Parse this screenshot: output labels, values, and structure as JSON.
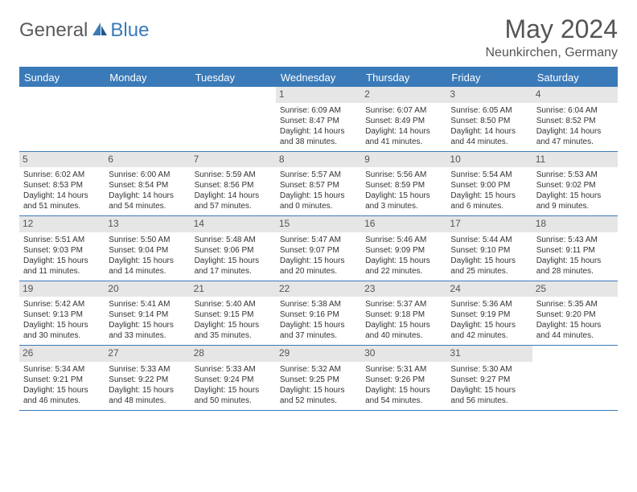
{
  "logo": {
    "part1": "General",
    "part2": "Blue"
  },
  "title": "May 2024",
  "location": "Neunkirchen, Germany",
  "colors": {
    "header_bg": "#3a7ab8",
    "daynum_bg": "#e6e6e6",
    "text": "#333333",
    "title_text": "#555555"
  },
  "dow": [
    "Sunday",
    "Monday",
    "Tuesday",
    "Wednesday",
    "Thursday",
    "Friday",
    "Saturday"
  ],
  "weeks": [
    [
      {
        "n": "",
        "sr": "",
        "ss": "",
        "dl": ""
      },
      {
        "n": "",
        "sr": "",
        "ss": "",
        "dl": ""
      },
      {
        "n": "",
        "sr": "",
        "ss": "",
        "dl": ""
      },
      {
        "n": "1",
        "sr": "Sunrise: 6:09 AM",
        "ss": "Sunset: 8:47 PM",
        "dl": "Daylight: 14 hours and 38 minutes."
      },
      {
        "n": "2",
        "sr": "Sunrise: 6:07 AM",
        "ss": "Sunset: 8:49 PM",
        "dl": "Daylight: 14 hours and 41 minutes."
      },
      {
        "n": "3",
        "sr": "Sunrise: 6:05 AM",
        "ss": "Sunset: 8:50 PM",
        "dl": "Daylight: 14 hours and 44 minutes."
      },
      {
        "n": "4",
        "sr": "Sunrise: 6:04 AM",
        "ss": "Sunset: 8:52 PM",
        "dl": "Daylight: 14 hours and 47 minutes."
      }
    ],
    [
      {
        "n": "5",
        "sr": "Sunrise: 6:02 AM",
        "ss": "Sunset: 8:53 PM",
        "dl": "Daylight: 14 hours and 51 minutes."
      },
      {
        "n": "6",
        "sr": "Sunrise: 6:00 AM",
        "ss": "Sunset: 8:54 PM",
        "dl": "Daylight: 14 hours and 54 minutes."
      },
      {
        "n": "7",
        "sr": "Sunrise: 5:59 AM",
        "ss": "Sunset: 8:56 PM",
        "dl": "Daylight: 14 hours and 57 minutes."
      },
      {
        "n": "8",
        "sr": "Sunrise: 5:57 AM",
        "ss": "Sunset: 8:57 PM",
        "dl": "Daylight: 15 hours and 0 minutes."
      },
      {
        "n": "9",
        "sr": "Sunrise: 5:56 AM",
        "ss": "Sunset: 8:59 PM",
        "dl": "Daylight: 15 hours and 3 minutes."
      },
      {
        "n": "10",
        "sr": "Sunrise: 5:54 AM",
        "ss": "Sunset: 9:00 PM",
        "dl": "Daylight: 15 hours and 6 minutes."
      },
      {
        "n": "11",
        "sr": "Sunrise: 5:53 AM",
        "ss": "Sunset: 9:02 PM",
        "dl": "Daylight: 15 hours and 9 minutes."
      }
    ],
    [
      {
        "n": "12",
        "sr": "Sunrise: 5:51 AM",
        "ss": "Sunset: 9:03 PM",
        "dl": "Daylight: 15 hours and 11 minutes."
      },
      {
        "n": "13",
        "sr": "Sunrise: 5:50 AM",
        "ss": "Sunset: 9:04 PM",
        "dl": "Daylight: 15 hours and 14 minutes."
      },
      {
        "n": "14",
        "sr": "Sunrise: 5:48 AM",
        "ss": "Sunset: 9:06 PM",
        "dl": "Daylight: 15 hours and 17 minutes."
      },
      {
        "n": "15",
        "sr": "Sunrise: 5:47 AM",
        "ss": "Sunset: 9:07 PM",
        "dl": "Daylight: 15 hours and 20 minutes."
      },
      {
        "n": "16",
        "sr": "Sunrise: 5:46 AM",
        "ss": "Sunset: 9:09 PM",
        "dl": "Daylight: 15 hours and 22 minutes."
      },
      {
        "n": "17",
        "sr": "Sunrise: 5:44 AM",
        "ss": "Sunset: 9:10 PM",
        "dl": "Daylight: 15 hours and 25 minutes."
      },
      {
        "n": "18",
        "sr": "Sunrise: 5:43 AM",
        "ss": "Sunset: 9:11 PM",
        "dl": "Daylight: 15 hours and 28 minutes."
      }
    ],
    [
      {
        "n": "19",
        "sr": "Sunrise: 5:42 AM",
        "ss": "Sunset: 9:13 PM",
        "dl": "Daylight: 15 hours and 30 minutes."
      },
      {
        "n": "20",
        "sr": "Sunrise: 5:41 AM",
        "ss": "Sunset: 9:14 PM",
        "dl": "Daylight: 15 hours and 33 minutes."
      },
      {
        "n": "21",
        "sr": "Sunrise: 5:40 AM",
        "ss": "Sunset: 9:15 PM",
        "dl": "Daylight: 15 hours and 35 minutes."
      },
      {
        "n": "22",
        "sr": "Sunrise: 5:38 AM",
        "ss": "Sunset: 9:16 PM",
        "dl": "Daylight: 15 hours and 37 minutes."
      },
      {
        "n": "23",
        "sr": "Sunrise: 5:37 AM",
        "ss": "Sunset: 9:18 PM",
        "dl": "Daylight: 15 hours and 40 minutes."
      },
      {
        "n": "24",
        "sr": "Sunrise: 5:36 AM",
        "ss": "Sunset: 9:19 PM",
        "dl": "Daylight: 15 hours and 42 minutes."
      },
      {
        "n": "25",
        "sr": "Sunrise: 5:35 AM",
        "ss": "Sunset: 9:20 PM",
        "dl": "Daylight: 15 hours and 44 minutes."
      }
    ],
    [
      {
        "n": "26",
        "sr": "Sunrise: 5:34 AM",
        "ss": "Sunset: 9:21 PM",
        "dl": "Daylight: 15 hours and 46 minutes."
      },
      {
        "n": "27",
        "sr": "Sunrise: 5:33 AM",
        "ss": "Sunset: 9:22 PM",
        "dl": "Daylight: 15 hours and 48 minutes."
      },
      {
        "n": "28",
        "sr": "Sunrise: 5:33 AM",
        "ss": "Sunset: 9:24 PM",
        "dl": "Daylight: 15 hours and 50 minutes."
      },
      {
        "n": "29",
        "sr": "Sunrise: 5:32 AM",
        "ss": "Sunset: 9:25 PM",
        "dl": "Daylight: 15 hours and 52 minutes."
      },
      {
        "n": "30",
        "sr": "Sunrise: 5:31 AM",
        "ss": "Sunset: 9:26 PM",
        "dl": "Daylight: 15 hours and 54 minutes."
      },
      {
        "n": "31",
        "sr": "Sunrise: 5:30 AM",
        "ss": "Sunset: 9:27 PM",
        "dl": "Daylight: 15 hours and 56 minutes."
      },
      {
        "n": "",
        "sr": "",
        "ss": "",
        "dl": ""
      }
    ]
  ]
}
